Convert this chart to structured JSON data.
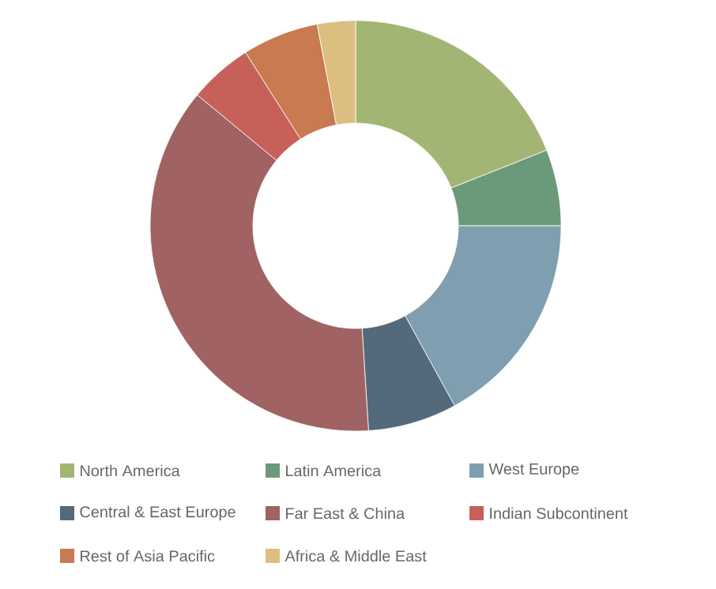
{
  "chart_data": {
    "type": "donut",
    "legend": "bottom",
    "categories": [
      "North America",
      "Latin America",
      "West Europe",
      "Central & East Europe",
      "Far East & China",
      "Indian Subcontinent",
      "Rest of Asia Pacific",
      "Africa & Middle East"
    ],
    "values": [
      19,
      6,
      17,
      7,
      37,
      5,
      6,
      3
    ],
    "colors": [
      "#a3b574",
      "#6a9a7a",
      "#7f9fb0",
      "#546a7b",
      "#a06262",
      "#c8605a",
      "#c87a50",
      "#dcbf80"
    ]
  }
}
